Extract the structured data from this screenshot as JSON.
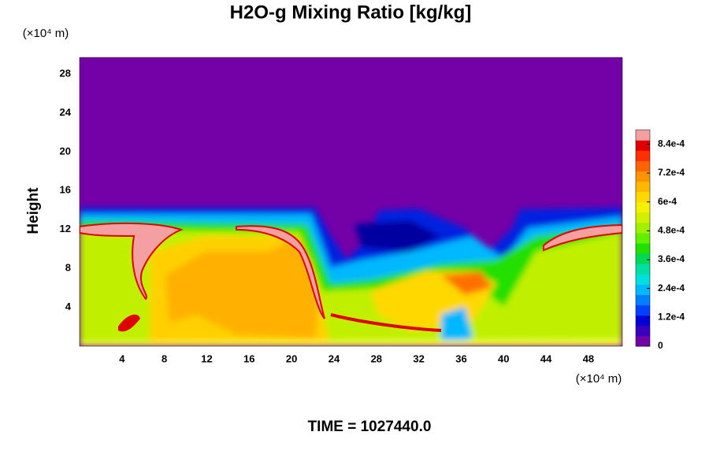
{
  "chart_data": {
    "type": "contour",
    "title": "H2O-g Mixing Ratio [kg/kg]",
    "ylabel": "Height",
    "xunit": "(×10⁴ m)",
    "yunit": "(×10⁴ m)",
    "footer": "TIME = 1027440.0",
    "xlim": [
      0,
      51.2
    ],
    "xticks": [
      4,
      8,
      12,
      16,
      20,
      24,
      28,
      32,
      36,
      40,
      44,
      48
    ],
    "ylim": [
      0,
      29.7
    ],
    "yticks": [
      4,
      8,
      12,
      16,
      20,
      24,
      28
    ],
    "clim": [
      0,
      0.0009
    ],
    "cticks": [
      0,
      {
        "value": 0.00012,
        "label": "1.2e-4"
      },
      {
        "value": 0.00024,
        "label": "2.4e-4"
      },
      {
        "value": 0.00036,
        "label": "3.6e-4"
      },
      {
        "value": 0.00048,
        "label": "4.8e-4"
      },
      {
        "value": 0.0006,
        "label": "6e-4"
      },
      {
        "value": 0.00072,
        "label": "7.2e-4"
      },
      {
        "value": 0.00084,
        "label": "8.4e-4"
      }
    ],
    "colors": [
      "#7400a8",
      "#3a00c0",
      "#0000d8",
      "#0040ff",
      "#0080ff",
      "#00b8ff",
      "#00e0e0",
      "#00e0a0",
      "#00d858",
      "#20e000",
      "#60f000",
      "#a0f000",
      "#d0f000",
      "#f4f000",
      "#ffd800",
      "#ffb800",
      "#ff9400",
      "#ff6400",
      "#ff3000",
      "#e00000",
      "#f4a0a0"
    ]
  }
}
